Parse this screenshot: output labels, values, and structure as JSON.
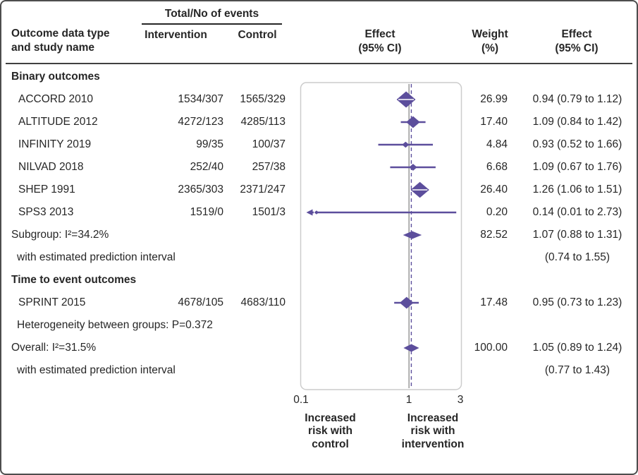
{
  "colors": {
    "accent": "#5c4e9c",
    "null_line": "#999999",
    "plot_box_border": "#cccccc",
    "text": "#262626",
    "frame_border": "#4d4d4d"
  },
  "header": {
    "events_group_title": "Total/No of events",
    "col_outcome": "Outcome data type\nand study name",
    "col_intervention": "Intervention",
    "col_control": "Control",
    "col_effect_plot": "Effect\n(95% CI)",
    "col_weight": "Weight\n(%)",
    "col_effect_text": "Effect\n(95% CI)"
  },
  "chart_data": {
    "type": "scatter",
    "variant": "forest-plot",
    "x_scale": "log",
    "axis": {
      "min": 0.1,
      "max": 3,
      "ticks": [
        0.1,
        1,
        3
      ],
      "tick_labels": [
        "0.1",
        "1",
        "3"
      ]
    },
    "null_line": 1,
    "overall_line": 1.05,
    "rows": [
      {
        "type": "section",
        "label": "Binary outcomes"
      },
      {
        "type": "study",
        "label": "ACCORD 2010",
        "intervention": "1534/307",
        "control": "1565/329",
        "est": 0.94,
        "lo": 0.79,
        "hi": 1.12,
        "weight": 26.99,
        "weight_text": "26.99",
        "effect_text": "0.94 (0.79 to 1.12)"
      },
      {
        "type": "study",
        "label": "ALTITUDE 2012",
        "intervention": "4272/123",
        "control": "4285/113",
        "est": 1.09,
        "lo": 0.84,
        "hi": 1.42,
        "weight": 17.4,
        "weight_text": "17.40",
        "effect_text": "1.09 (0.84 to 1.42)"
      },
      {
        "type": "study",
        "label": "INFINITY 2019",
        "intervention": "99/35",
        "control": "100/37",
        "est": 0.93,
        "lo": 0.52,
        "hi": 1.66,
        "weight": 4.84,
        "weight_text": "4.84",
        "effect_text": "0.93 (0.52 to 1.66)"
      },
      {
        "type": "study",
        "label": "NILVAD 2018",
        "intervention": "252/40",
        "control": "257/38",
        "est": 1.09,
        "lo": 0.67,
        "hi": 1.76,
        "weight": 6.68,
        "weight_text": "6.68",
        "effect_text": "1.09 (0.67 to 1.76)"
      },
      {
        "type": "study",
        "label": "SHEP 1991",
        "intervention": "2365/303",
        "control": "2371/247",
        "est": 1.26,
        "lo": 1.06,
        "hi": 1.51,
        "weight": 26.4,
        "weight_text": "26.40",
        "effect_text": "1.26 (1.06 to 1.51)"
      },
      {
        "type": "study",
        "label": "SPS3 2013",
        "intervention": "1519/0",
        "control": "1501/3",
        "est": 0.14,
        "lo": 0.01,
        "hi": 2.73,
        "weight": 0.2,
        "weight_text": "0.20",
        "effect_text": "0.14 (0.01 to 2.73)",
        "arrow_left": true
      },
      {
        "type": "pooled",
        "label": "Subgroup: I²=34.2%",
        "est": 1.07,
        "lo": 0.88,
        "hi": 1.31,
        "weight_text": "82.52",
        "effect_text": "1.07 (0.88 to 1.31)"
      },
      {
        "type": "note",
        "label": "with estimated prediction interval",
        "effect_text": "(0.74 to 1.55)"
      },
      {
        "type": "section",
        "label": "Time to event outcomes"
      },
      {
        "type": "study",
        "label": "SPRINT 2015",
        "intervention": "4678/105",
        "control": "4683/110",
        "est": 0.95,
        "lo": 0.73,
        "hi": 1.23,
        "weight": 17.48,
        "weight_text": "17.48",
        "effect_text": "0.95 (0.73 to 1.23)"
      },
      {
        "type": "note",
        "label": "Heterogeneity between groups: P=0.372"
      },
      {
        "type": "pooled",
        "label": "Overall: I²=31.5%",
        "est": 1.05,
        "lo": 0.89,
        "hi": 1.24,
        "weight_text": "100.00",
        "effect_text": "1.05 (0.89 to 1.24)"
      },
      {
        "type": "note",
        "label": "with estimated prediction interval",
        "effect_text": "(0.77 to 1.43)"
      }
    ],
    "footer": {
      "left_label": "Increased\nrisk with\ncontrol",
      "right_label": "Increased\nrisk with\nintervention"
    }
  }
}
